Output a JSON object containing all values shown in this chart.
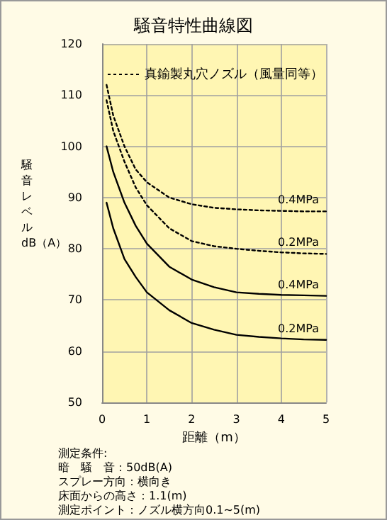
{
  "chart_data": {
    "type": "line",
    "title": "騒音特性曲線図",
    "xlabel": "距離（m）",
    "ylabel": "騒音レベル dB（A）",
    "xlim": [
      0,
      5
    ],
    "xticks": [
      0,
      1,
      2,
      3,
      4,
      5
    ],
    "ylim": [
      50,
      120
    ],
    "yticks": [
      50,
      60,
      70,
      80,
      90,
      100,
      110,
      120
    ],
    "grid": true,
    "marker": "none",
    "series": [
      {
        "name": "0.2MPa",
        "color": "#000000",
        "line_style": "solid",
        "x": [
          0.1,
          0.25,
          0.5,
          0.75,
          1,
          1.5,
          2,
          2.5,
          3,
          3.5,
          4,
          4.5,
          5
        ],
        "values": [
          89,
          84,
          78,
          74.5,
          71.5,
          68,
          65.5,
          64.2,
          63.2,
          62.8,
          62.5,
          62.3,
          62.2
        ]
      },
      {
        "name": "0.4MPa",
        "color": "#000000",
        "line_style": "solid",
        "x": [
          0.1,
          0.25,
          0.5,
          0.75,
          1,
          1.5,
          2,
          2.5,
          3,
          3.5,
          4,
          4.5,
          5
        ],
        "values": [
          100,
          95,
          89,
          84.5,
          81,
          76.5,
          74,
          72.5,
          71.5,
          71.2,
          71,
          70.9,
          70.8
        ]
      },
      {
        "name": "0.2MPa",
        "color": "#000000",
        "line_style": "dotted",
        "x": [
          0.1,
          0.25,
          0.5,
          0.75,
          1,
          1.5,
          2,
          2.5,
          3,
          3.5,
          4,
          4.5,
          5
        ],
        "values": [
          109,
          103,
          97,
          92,
          88.5,
          84,
          81.5,
          80.5,
          80,
          79.6,
          79.3,
          79.1,
          79
        ]
      },
      {
        "name": "0.4MPa",
        "color": "#000000",
        "line_style": "dotted",
        "x": [
          0.1,
          0.25,
          0.5,
          0.75,
          1,
          1.5,
          2,
          2.5,
          3,
          3.5,
          4,
          4.5,
          5
        ],
        "values": [
          112,
          106,
          100,
          95.5,
          93,
          90,
          88.7,
          88,
          87.7,
          87.5,
          87.4,
          87.3,
          87.3
        ]
      }
    ],
    "annotations": [
      "真鍮製丸穴ノズル（風量同等）",
      "測定条件:",
      "暗　騒　音：50dB(A)",
      "スプレー方向：横向き",
      "床面からの高さ：1.1(m)",
      "測定ポイント：ノズル横方向0.1~5(m)"
    ]
  }
}
